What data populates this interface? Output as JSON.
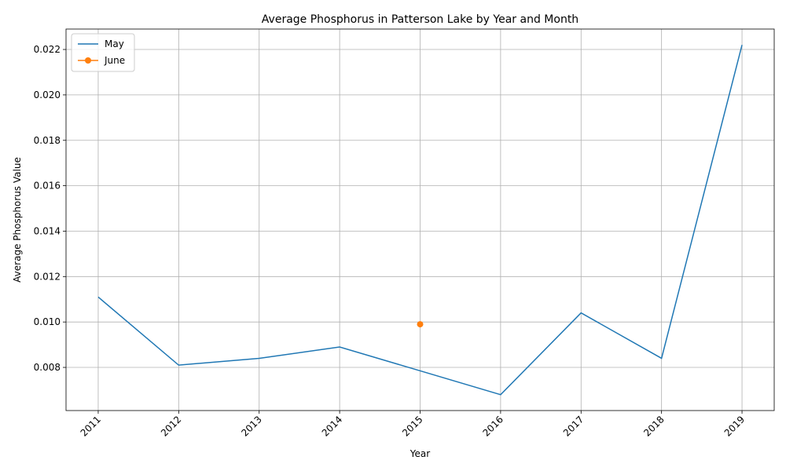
{
  "chart_data": {
    "type": "line",
    "title": "Average Phosphorus in Patterson Lake by Year and Month",
    "xlabel": "Year",
    "ylabel": "Average Phosphorus Value",
    "categories": [
      "2011",
      "2012",
      "2013",
      "2014",
      "2015",
      "2016",
      "2017",
      "2018",
      "2019"
    ],
    "x_tick_labels": [
      "2011",
      "2012",
      "2013",
      "2014",
      "2015",
      "2016",
      "2017",
      "2018",
      "2019"
    ],
    "y_tick_labels": [
      "0.008",
      "0.010",
      "0.012",
      "0.014",
      "0.016",
      "0.018",
      "0.020",
      "0.022"
    ],
    "y_ticks": [
      0.008,
      0.01,
      0.012,
      0.014,
      0.016,
      0.018,
      0.02,
      0.022
    ],
    "ylim": [
      0.0061,
      0.0229
    ],
    "xlim": [
      2010.6,
      2019.4
    ],
    "grid": true,
    "legend_position": "top-left",
    "series": [
      {
        "name": "May",
        "color": "#1f77b4",
        "marker": "none",
        "x": [
          2011,
          2012,
          2013,
          2014,
          2016,
          2017,
          2018,
          2019
        ],
        "values": [
          0.0111,
          0.0081,
          0.0084,
          0.0089,
          0.0068,
          0.0104,
          0.0084,
          0.0222
        ]
      },
      {
        "name": "June",
        "color": "#ff7f0e",
        "marker": "circle",
        "x": [
          2015
        ],
        "values": [
          0.0099
        ]
      }
    ]
  }
}
